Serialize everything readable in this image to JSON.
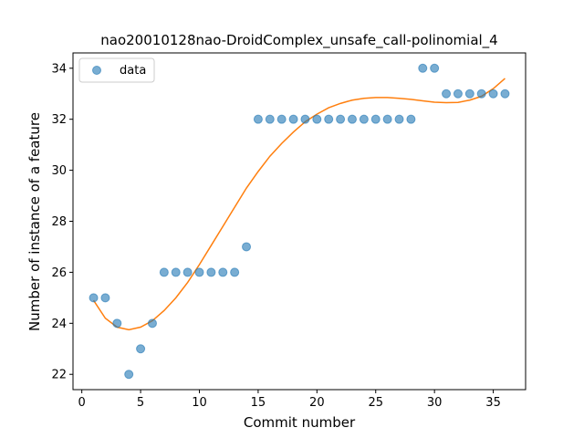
{
  "chart_data": {
    "type": "scatter",
    "title": "nao20010128nao-DroidComplex_unsafe_call-polinomial_4",
    "xlabel": "Commit number",
    "ylabel": "Number of instance of a feature",
    "xlim": [
      -0.75,
      37.75
    ],
    "ylim": [
      21.4,
      34.6
    ],
    "xticks": [
      0,
      5,
      10,
      15,
      20,
      25,
      30,
      35
    ],
    "yticks": [
      22,
      24,
      26,
      28,
      30,
      32,
      34
    ],
    "grid": false,
    "legend": {
      "placement": "top-left",
      "entries": [
        "data"
      ]
    },
    "series": [
      {
        "name": "data",
        "kind": "scatter",
        "color": "#1f77b4",
        "x": [
          1,
          2,
          3,
          4,
          5,
          6,
          7,
          8,
          9,
          10,
          11,
          12,
          13,
          14,
          15,
          16,
          17,
          18,
          19,
          20,
          21,
          22,
          23,
          24,
          25,
          26,
          27,
          28,
          29,
          30,
          31,
          32,
          33,
          34,
          35,
          36
        ],
        "y": [
          25,
          25,
          24,
          22,
          23,
          24,
          26,
          26,
          26,
          26,
          26,
          26,
          26,
          27,
          32,
          32,
          32,
          32,
          32,
          32,
          32,
          32,
          32,
          32,
          32,
          32,
          32,
          32,
          34,
          34,
          33,
          33,
          33,
          33,
          33,
          33
        ]
      },
      {
        "kind": "line",
        "color": "#ff7f0e",
        "x": [
          1,
          2,
          3,
          4,
          5,
          6,
          7,
          8,
          9,
          10,
          11,
          12,
          13,
          14,
          15,
          16,
          17,
          18,
          19,
          20,
          21,
          22,
          23,
          24,
          25,
          26,
          27,
          28,
          29,
          30,
          31,
          32,
          33,
          34,
          35,
          36
        ],
        "y": [
          24.9,
          24.2,
          23.85,
          23.75,
          23.85,
          24.1,
          24.5,
          25.0,
          25.6,
          26.3,
          27.05,
          27.8,
          28.55,
          29.3,
          29.95,
          30.55,
          31.05,
          31.5,
          31.9,
          32.2,
          32.45,
          32.62,
          32.75,
          32.82,
          32.85,
          32.85,
          32.82,
          32.78,
          32.72,
          32.67,
          32.65,
          32.66,
          32.75,
          32.9,
          33.2,
          33.6
        ]
      }
    ]
  }
}
